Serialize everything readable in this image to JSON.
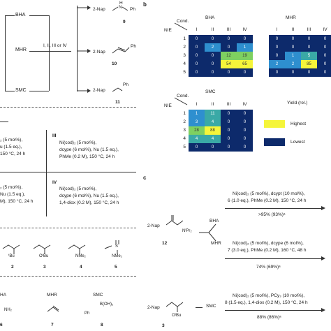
{
  "panel_a": {
    "left_labels": [
      "BHA",
      "MHR",
      "SMC"
    ],
    "conditions": "I, II, III or IV",
    "products": [
      {
        "left": "2-Nap",
        "right": "Ph",
        "mid": "N",
        "top": "H",
        "num": "9"
      },
      {
        "left": "2-Nap",
        "right": "Ph",
        "num": "10"
      },
      {
        "left": "2-Nap",
        "right": "Ph",
        "num": "11"
      }
    ],
    "cond_III": {
      "label": "III",
      "lines": [
        "Ni(cod)₂ (5 mol%),",
        "dcype (6 mol%), Nu (1.5 eq.),",
        "PhMe (0.2 M), 150 °C, 24 h"
      ]
    },
    "cond_IV": {
      "label": "IV",
      "lines": [
        "Ni(cod)₂ (5 mol%),",
        "dcype (6 mol%), Nu (1.5 eq.),",
        "1,4-diox (0.2 M), 150 °C, 24 h"
      ]
    },
    "cond_left_top": [
      "₂ (5 mol%),",
      "u (1.5 eq.),",
      "150 °C, 24 h"
    ],
    "cond_left_bottom": [
      "₂ (5 mol%),",
      "Nu (1.5 eq.),",
      "M), 150 °C, 24 h"
    ],
    "esters": [
      {
        "num": "2",
        "sub": "ᵗBu"
      },
      {
        "num": "3",
        "sub": "OᵗBu"
      },
      {
        "num": "4",
        "sub": "NMe₂"
      },
      {
        "num": "5",
        "sub": "NMe₂"
      }
    ],
    "ester5_S": "S",
    "nucleophiles": {
      "headers": [
        "HA",
        "MHR",
        "SMC"
      ],
      "items": [
        {
          "num": "6",
          "text": "NH₂"
        },
        {
          "num": "7",
          "text": ""
        },
        {
          "num": "8",
          "text": "B(OH)₂",
          "prefix": "Ph"
        }
      ]
    }
  },
  "panel_b": {
    "label": "b",
    "cond_label": "Cond.",
    "nie_label": "NIE",
    "col_headers": [
      "I",
      "II",
      "III",
      "IV"
    ],
    "row_headers": [
      "1",
      "2",
      "3",
      "4",
      "5"
    ],
    "heatmaps": [
      {
        "title": "BHA",
        "values": [
          [
            "0",
            "0",
            "0",
            "0"
          ],
          [
            "0",
            "2",
            "0",
            "1"
          ],
          [
            "0",
            "0",
            "12",
            "19"
          ],
          [
            "0",
            "0",
            "54",
            "65"
          ],
          [
            "0",
            "0",
            "0",
            "0"
          ]
        ]
      },
      {
        "title": "MHR",
        "values": [
          [
            "0",
            "0",
            "0",
            "0"
          ],
          [
            "0",
            "0",
            "0",
            "0"
          ],
          [
            "0",
            "1",
            "5",
            "0"
          ],
          [
            "2",
            "2",
            "85",
            "0"
          ],
          [
            "0",
            "0",
            "0",
            "0"
          ]
        ]
      },
      {
        "title": "SMC",
        "values": [
          [
            "1",
            "11",
            "0",
            "0"
          ],
          [
            "3",
            "4",
            "0",
            "0"
          ],
          [
            "28",
            "88",
            "0",
            "0"
          ],
          [
            "4",
            "4",
            "0",
            "0"
          ],
          [
            "0",
            "0",
            "0",
            "0"
          ]
        ]
      }
    ],
    "legend": {
      "title": "Yield (rel.)",
      "entries": [
        "Highest",
        "Lowest"
      ]
    },
    "colors": {
      "highest": "#f5f53a",
      "mid": "#2e8fcf",
      "lowest": "#0d2a6b",
      "teal": "#3aa9a6",
      "green": "#7ed060"
    }
  },
  "panel_c": {
    "label": "c",
    "sub1": {
      "name": "2-Nap",
      "num": "12",
      "N": "NⁱPr₂"
    },
    "branch_BHA": {
      "label": "BHA",
      "lines": [
        "Ni(cod)₂ (5 mol%), dcypt (10 mol%),",
        "6 (1.0 eq.), PhMe (0.2 M), 150 °C, 24 h"
      ],
      "yield": ">95% (93%)ᵃ"
    },
    "branch_MHR": {
      "label": "MHR",
      "lines": [
        "Ni(cod)₂ (5 mol%), dcype (6 mol%),",
        "7 (3.0 eq.), PhMe (0.2 M), 160 °C, 48 h"
      ],
      "yield": "74% (69%)ᵃ"
    },
    "sub2": {
      "name": "2-Nap",
      "num": "3",
      "O": "OᵗBu"
    },
    "branch_SMC": {
      "label": "SMC",
      "lines": [
        "Ni(cod)₂ (5 mol%), PCy₃ (10 mol%),",
        "8 (1.5 eq.), 1,4-diox (0.2 M), 150 °C, 24 h"
      ],
      "yield": "88% (86%)ᵃ"
    }
  }
}
